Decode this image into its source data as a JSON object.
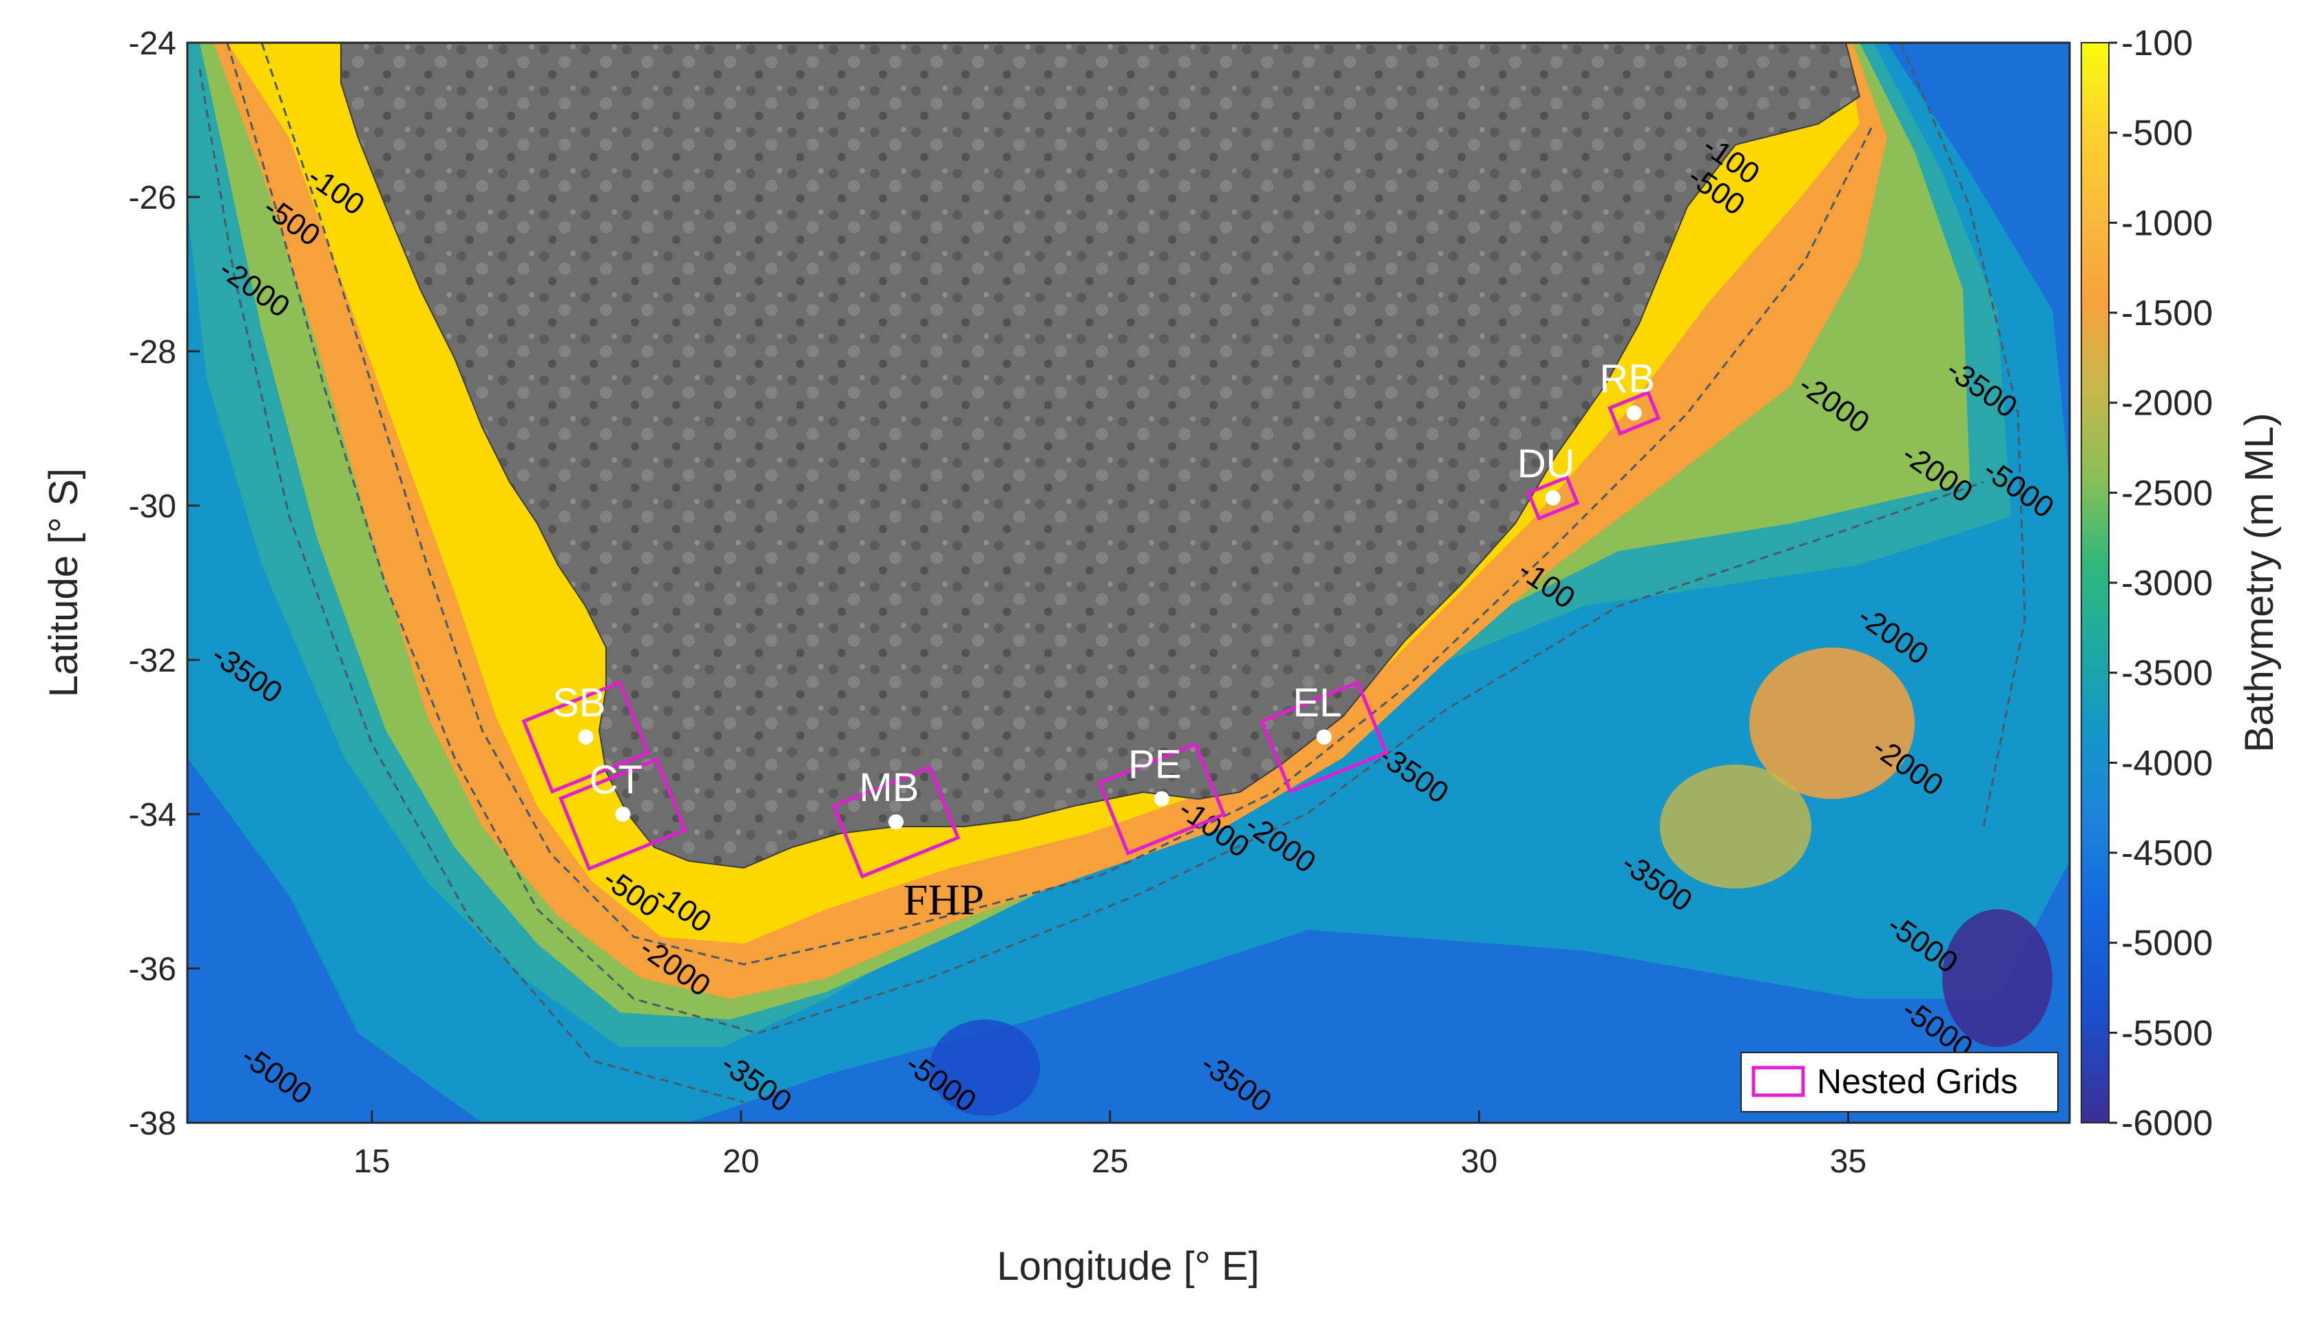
{
  "map": {
    "x_axis": {
      "label": "Longitude [° E]",
      "ticks": [
        "15",
        "20",
        "25",
        "30",
        "35"
      ],
      "tick_values": [
        15,
        20,
        25,
        30,
        35
      ],
      "range": [
        12.5,
        38.0
      ]
    },
    "y_axis": {
      "label": "Latitude [° S]",
      "ticks": [
        "-24",
        "-26",
        "-28",
        "-30",
        "-32",
        "-34",
        "-36",
        "-38"
      ],
      "tick_values": [
        -24,
        -26,
        -28,
        -30,
        -32,
        -34,
        -36,
        -38
      ],
      "range": [
        -38,
        -24
      ]
    },
    "colorbar": {
      "label": "Bathymetry (m ML)",
      "ticks": [
        "-100",
        "-500",
        "-1000",
        "-1500",
        "-2000",
        "-2500",
        "-3000",
        "-3500",
        "-4000",
        "-4500",
        "-5000",
        "-5500",
        "-6000"
      ],
      "colors": [
        "#f9fb0e",
        "#fdd22e",
        "#f8ba3d",
        "#f6a13c",
        "#c6b74b",
        "#8dbf56",
        "#32b879",
        "#1fa9a3",
        "#1596c8",
        "#1e83da",
        "#1369df",
        "#1b4fcc",
        "#3d2f95"
      ]
    },
    "legend": {
      "label": "Nested Grids",
      "color": "#e020d0",
      "position": "bottom-right"
    },
    "sites": [
      {
        "code": "SB",
        "lon": 17.9,
        "lat": -33.0
      },
      {
        "code": "CT",
        "lon": 18.4,
        "lat": -34.0
      },
      {
        "code": "MB",
        "lon": 22.1,
        "lat": -34.1
      },
      {
        "code": "PE",
        "lon": 25.7,
        "lat": -33.8
      },
      {
        "code": "EL",
        "lon": 27.9,
        "lat": -33.0
      },
      {
        "code": "DU",
        "lon": 31.0,
        "lat": -29.9
      },
      {
        "code": "RB",
        "lon": 32.1,
        "lat": -28.8
      }
    ],
    "fhp_label": "FHP",
    "contour_labels": [
      {
        "text": "-100",
        "lon": 14.1,
        "lat": -25.8
      },
      {
        "text": "-500",
        "lon": 13.5,
        "lat": -26.2
      },
      {
        "text": "-2000",
        "lon": 12.9,
        "lat": -27.0
      },
      {
        "text": "-3500",
        "lon": 12.8,
        "lat": -32.0
      },
      {
        "text": "-5000",
        "lon": 13.2,
        "lat": -37.2
      },
      {
        "text": "-500",
        "lon": 18.1,
        "lat": -34.9
      },
      {
        "text": "-100",
        "lon": 18.8,
        "lat": -35.1
      },
      {
        "text": "-2000",
        "lon": 18.6,
        "lat": -35.8
      },
      {
        "text": "-3500",
        "lon": 19.7,
        "lat": -37.3
      },
      {
        "text": "-5000",
        "lon": 22.2,
        "lat": -37.3
      },
      {
        "text": "-3500",
        "lon": 26.2,
        "lat": -37.3
      },
      {
        "text": "-1000",
        "lon": 25.9,
        "lat": -34.0
      },
      {
        "text": "-2000",
        "lon": 26.8,
        "lat": -34.2
      },
      {
        "text": "-3500",
        "lon": 28.6,
        "lat": -33.3
      },
      {
        "text": "-3500",
        "lon": 31.9,
        "lat": -34.7
      },
      {
        "text": "-100",
        "lon": 30.5,
        "lat": -30.9
      },
      {
        "text": "-500",
        "lon": 32.8,
        "lat": -25.8
      },
      {
        "text": "-100",
        "lon": 33.0,
        "lat": -25.4
      },
      {
        "text": "-2000",
        "lon": 34.3,
        "lat": -28.5
      },
      {
        "text": "-2000",
        "lon": 35.7,
        "lat": -29.4
      },
      {
        "text": "-3500",
        "lon": 36.3,
        "lat": -28.3
      },
      {
        "text": "-5000",
        "lon": 36.8,
        "lat": -29.6
      },
      {
        "text": "-2000",
        "lon": 35.1,
        "lat": -31.5
      },
      {
        "text": "-2000",
        "lon": 35.3,
        "lat": -33.2
      },
      {
        "text": "-5000",
        "lon": 35.5,
        "lat": -35.5
      },
      {
        "text": "-5000",
        "lon": 35.7,
        "lat": -36.6
      }
    ]
  }
}
